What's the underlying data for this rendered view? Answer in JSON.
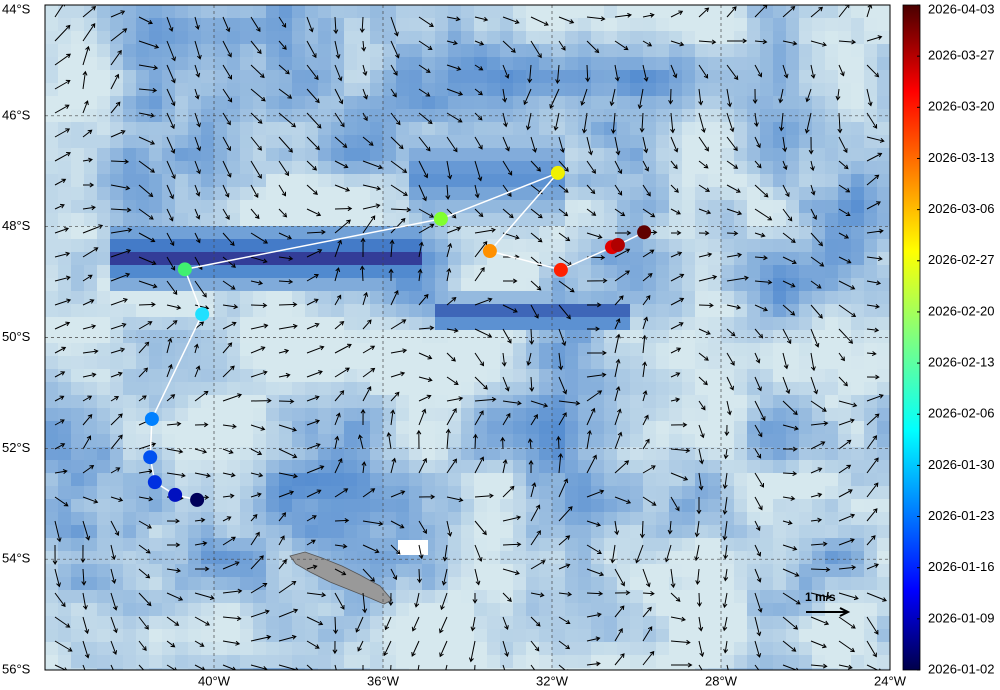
{
  "map": {
    "xlim": [
      -44,
      -24
    ],
    "ylim": [
      -56,
      -44
    ],
    "xticks": [
      {
        "value": -40,
        "label": "40°W"
      },
      {
        "value": -36,
        "label": "36°W"
      },
      {
        "value": -32,
        "label": "32°W"
      },
      {
        "value": -28,
        "label": "28°W"
      },
      {
        "value": -24,
        "label": "24°W"
      }
    ],
    "yticks": [
      {
        "value": -44,
        "label": "44°S"
      },
      {
        "value": -46,
        "label": "46°S"
      },
      {
        "value": -48,
        "label": "48°S"
      },
      {
        "value": -50,
        "label": "50°S"
      },
      {
        "value": -52,
        "label": "52°S"
      },
      {
        "value": -54,
        "label": "54°S"
      },
      {
        "value": -56,
        "label": "56°S"
      }
    ],
    "track": {
      "lon": [
        -40.4,
        -40.92,
        -41.4,
        -41.51,
        -41.47,
        -40.28,
        -40.69,
        -34.63,
        -31.86,
        -33.47,
        -31.79,
        -30.58,
        -30.44,
        -29.82
      ],
      "lat": [
        -52.93,
        -52.84,
        -52.61,
        -52.16,
        -51.47,
        -49.58,
        -48.77,
        -47.86,
        -47.03,
        -48.44,
        -48.78,
        -48.37,
        -48.33,
        -48.1
      ],
      "colors": [
        "#00005a",
        "#0010c0",
        "#0030e0",
        "#0050f0",
        "#0080ff",
        "#20e0ff",
        "#40f070",
        "#80ff30",
        "#f0f000",
        "#ff9000",
        "#ff2000",
        "#e00000",
        "#b00000",
        "#600000"
      ]
    },
    "scale_label": "1 m/s",
    "colorbar": {
      "labels": [
        "2026-04-03",
        "2026-03-27",
        "2026-03-20",
        "2026-03-13",
        "2026-03-06",
        "2026-02-27",
        "2026-02-20",
        "2026-02-13",
        "2026-02-06",
        "2026-01-30",
        "2026-01-23",
        "2026-01-16",
        "2026-01-09",
        "2026-01-02"
      ]
    }
  }
}
